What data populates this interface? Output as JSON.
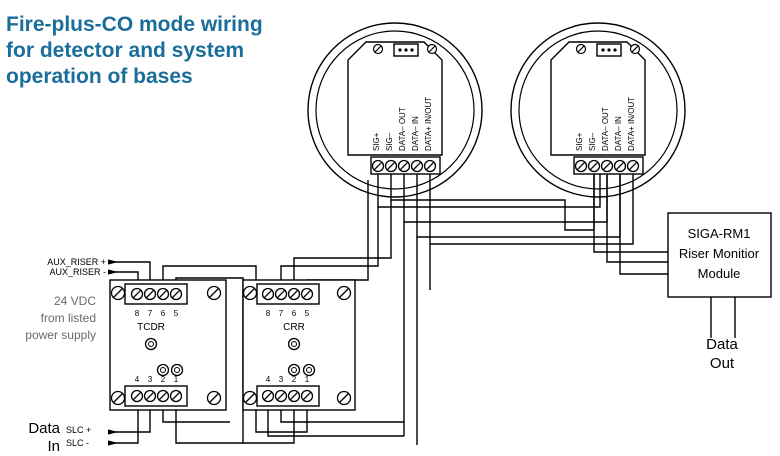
{
  "title": {
    "line1": "Fire-plus-CO mode wiring",
    "line2": "for detector and system",
    "line3": "operation of bases"
  },
  "detector_base": {
    "terminal_labels": [
      "SIG+",
      "SIG–",
      "DATA– OUT",
      "DATA– IN",
      "DATA+ IN/OUT"
    ]
  },
  "tcdr": {
    "name": "TCDR",
    "top_terminals": [
      "8",
      "7",
      "6",
      "5"
    ],
    "bottom_terminals": [
      "4",
      "3",
      "2",
      "1"
    ]
  },
  "crr": {
    "name": "CRR",
    "top_terminals": [
      "8",
      "7",
      "6",
      "5"
    ],
    "bottom_terminals": [
      "4",
      "3",
      "2",
      "1"
    ]
  },
  "riser_module": {
    "line1": "SIGA-RM1",
    "line2": "Riser Monitior",
    "line3": "Module"
  },
  "left_labels": {
    "aux_plus": "AUX_RISER +",
    "aux_minus": "AUX_RISER -",
    "supply_1": "24 VDC",
    "supply_2": "from listed",
    "supply_3": "power supply",
    "data": "Data",
    "in": "In",
    "slc_plus": "SLC +",
    "slc_minus": "SLC -"
  },
  "data_out": {
    "line1": "Data",
    "line2": "Out"
  }
}
